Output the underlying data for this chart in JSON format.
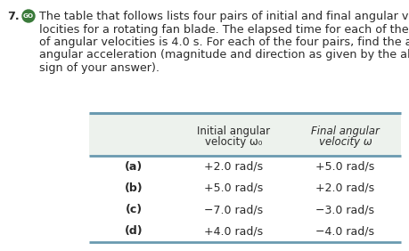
{
  "problem_number": "7.",
  "go_badge_color": "#3a7a3a",
  "go_text": "GO",
  "body_line1": "The table that follows lists four pairs of initial and final angular ve-",
  "body_line2": "locities for a rotating fan blade. The elapsed time for each of the four pairs",
  "body_line3": "of angular velocities is 4.0 s. For each of the four pairs, find the average",
  "body_line4": "angular acceleration (magnitude and direction as given by the algebraic",
  "body_line5": "sign of your answer).",
  "table_header_col1": "Initial angular\nvelocity ω₀",
  "table_header_col2": "Final angular\nvelocity ω",
  "table_rows": [
    {
      "label": "(a)",
      "initial": "+2.0 rad/s",
      "final": "+5.0 rad/s"
    },
    {
      "label": "(b)",
      "initial": "+5.0 rad/s",
      "final": "+2.0 rad/s"
    },
    {
      "label": "(c)",
      "initial": "−7.0 rad/s",
      "final": "−3.0 rad/s"
    },
    {
      "label": "(d)",
      "initial": "+4.0 rad/s",
      "final": "−4.0 rad/s"
    }
  ],
  "table_header_bg": "#edf2ed",
  "table_border_color": "#6a9ab0",
  "background_color": "#ffffff",
  "text_color": "#2a2a2a",
  "font_size_body": 9.2,
  "font_size_table": 9.0
}
